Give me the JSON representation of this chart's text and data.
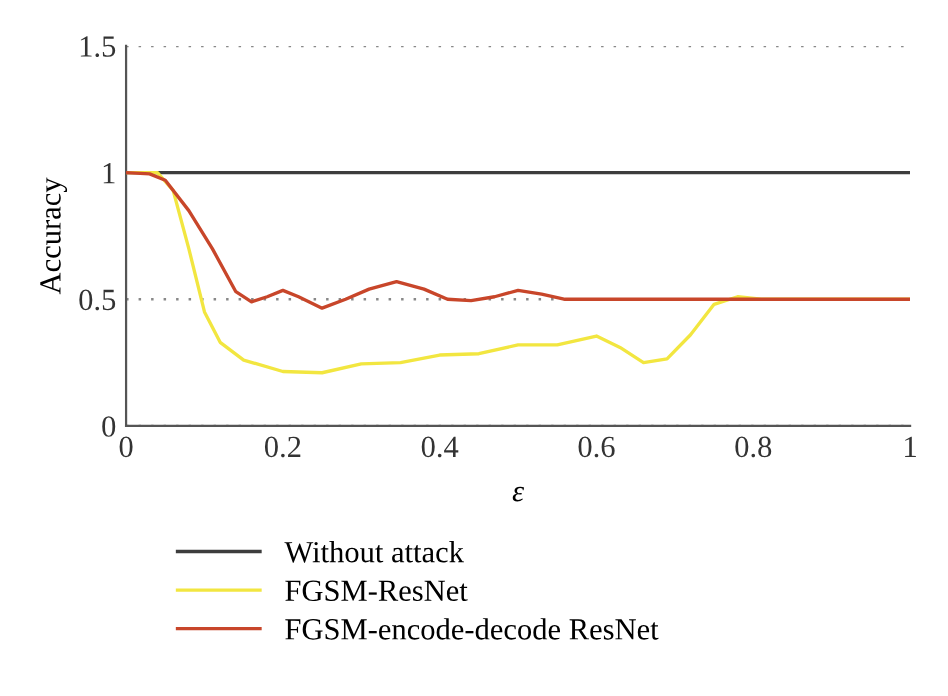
{
  "chart_data": {
    "type": "line",
    "xlabel": "ε",
    "ylabel": "Accuracy",
    "xlim": [
      0,
      1
    ],
    "ylim": [
      0,
      1.5
    ],
    "xticks": [
      0,
      0.2,
      0.4,
      0.6,
      0.8,
      1
    ],
    "yticks": [
      0,
      0.5,
      1,
      1.5
    ],
    "grid": "y",
    "legend": "bottom",
    "line_style": "solid",
    "marker": "none",
    "series": [
      {
        "name": "Without attack",
        "color": "#3d3d3d",
        "x": [
          0,
          1
        ],
        "values": [
          1,
          1
        ]
      },
      {
        "name": "FGSM-ResNet",
        "color": "#f2e640",
        "x": [
          0,
          0.04,
          0.06,
          0.08,
          0.1,
          0.12,
          0.15,
          0.2,
          0.25,
          0.3,
          0.35,
          0.4,
          0.45,
          0.5,
          0.55,
          0.6,
          0.63,
          0.66,
          0.69,
          0.72,
          0.75,
          0.78,
          0.81,
          1
        ],
        "values": [
          1,
          1,
          0.93,
          0.7,
          0.45,
          0.33,
          0.26,
          0.215,
          0.21,
          0.245,
          0.25,
          0.28,
          0.285,
          0.32,
          0.32,
          0.355,
          0.31,
          0.25,
          0.265,
          0.36,
          0.48,
          0.51,
          0.5,
          0.5
        ]
      },
      {
        "name": "FGSM-encode-decode ResNet",
        "color": "#c8462a",
        "x": [
          0,
          0.03,
          0.05,
          0.08,
          0.11,
          0.14,
          0.16,
          0.18,
          0.2,
          0.22,
          0.25,
          0.28,
          0.31,
          0.345,
          0.38,
          0.41,
          0.44,
          0.47,
          0.5,
          0.53,
          0.56,
          0.6,
          1
        ],
        "values": [
          1,
          0.995,
          0.97,
          0.85,
          0.7,
          0.53,
          0.49,
          0.51,
          0.535,
          0.51,
          0.465,
          0.5,
          0.54,
          0.57,
          0.54,
          0.5,
          0.495,
          0.51,
          0.535,
          0.52,
          0.5,
          0.5,
          0.5
        ]
      }
    ]
  }
}
